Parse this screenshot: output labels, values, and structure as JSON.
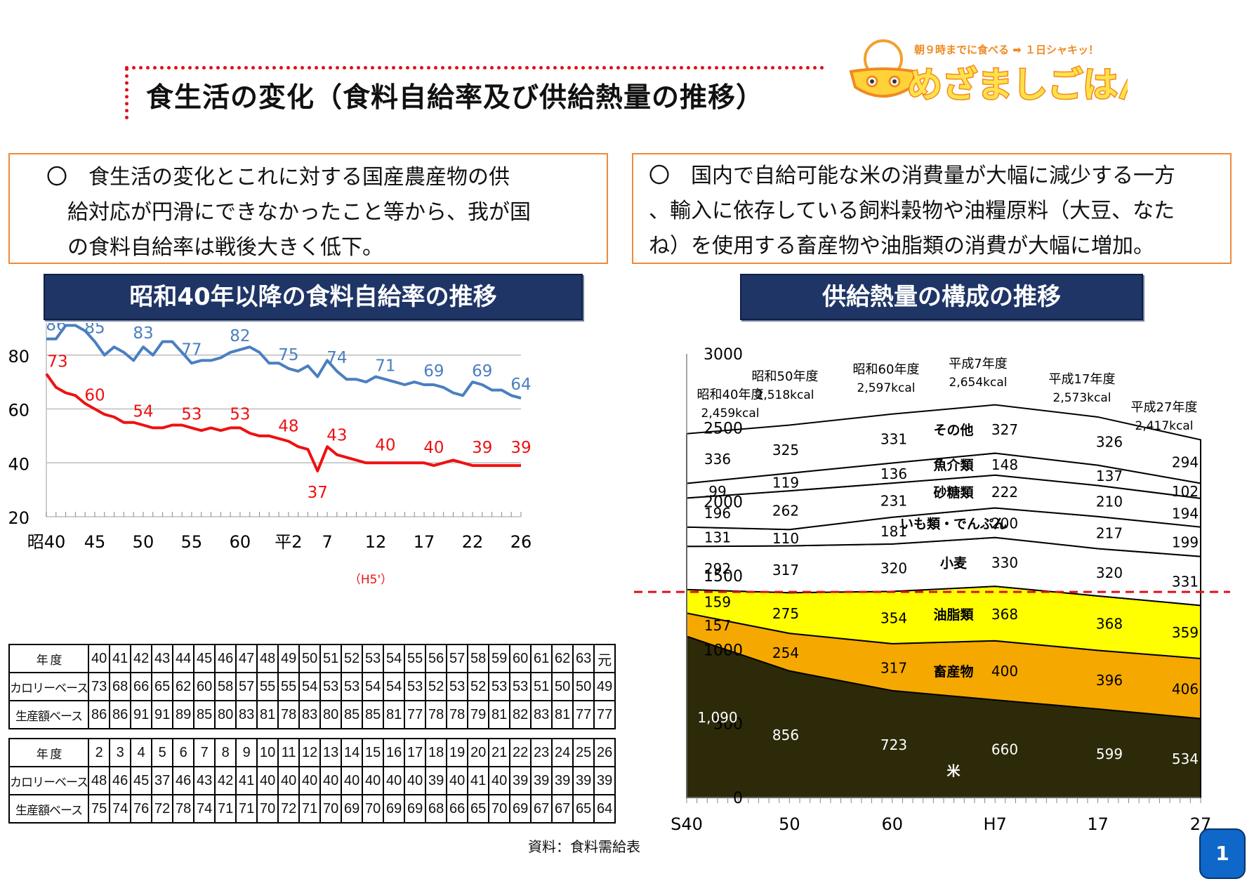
{
  "header": {
    "title": "食生活の変化（食料自給率及び供給熱量の推移）",
    "logo": {
      "tagline": "朝９時までに食べる ➡ １日シャキッ！",
      "name": "めざましごはん"
    }
  },
  "boxes": {
    "left": "〇　食生活の変化とこれに対する国産農産物の供\n　給対応が円滑にできなかったこと等から、我が国\n　の食料自給率は戦後大きく低下。",
    "right": "〇　国内で自給可能な米の消費量が大幅に減少する一方\n、輸入に依存している飼料穀物や油糧原料（大豆、なた\nね）を使用する畜産物や油脂類の消費が大幅に増加。"
  },
  "colors": {
    "calorie": "#ee1111",
    "production": "#4a7fc0",
    "rice": "#2c2a08",
    "livestock": "#f5a800",
    "oil": "#ffff00",
    "banner": "#1f3566"
  },
  "chart_data": [
    {
      "type": "line",
      "title": "昭和40年以降の食料自給率の推移",
      "ylim": [
        20,
        100
      ],
      "y_ticks": [
        "100",
        "80",
        "60",
        "40",
        "20"
      ],
      "x_tick_labels": [
        "昭40",
        "45",
        "50",
        "55",
        "60",
        "平2",
        "7",
        "12",
        "17",
        "22",
        "26"
      ],
      "series": [
        {
          "name": "生産額ベース",
          "values": [
            86,
            86,
            91,
            91,
            89,
            85,
            80,
            83,
            81,
            78,
            83,
            80,
            85,
            85,
            81,
            77,
            78,
            78,
            79,
            81,
            82,
            83,
            81,
            77,
            77,
            75,
            74,
            76,
            72,
            78,
            74,
            71,
            71,
            70,
            72,
            71,
            70,
            69,
            70,
            69,
            69,
            68,
            66,
            65,
            70,
            69,
            67,
            67,
            65,
            64
          ],
          "labels": [
            "86",
            "85",
            "83",
            "77",
            "82",
            "75",
            "74",
            "71",
            "69",
            "69",
            "64"
          ]
        },
        {
          "name": "カロリーベース",
          "values": [
            73,
            68,
            66,
            65,
            62,
            60,
            58,
            57,
            55,
            55,
            54,
            53,
            53,
            54,
            54,
            53,
            52,
            53,
            52,
            53,
            53,
            51,
            50,
            50,
            49,
            48,
            46,
            45,
            37,
            46,
            43,
            42,
            41,
            40,
            40,
            40,
            40,
            40,
            40,
            40,
            39,
            40,
            41,
            40,
            39,
            39,
            39,
            39,
            39,
            39
          ],
          "labels": [
            "73",
            "60",
            "54",
            "53",
            "53",
            "48",
            "43",
            "37",
            "40",
            "40",
            "39",
            "39"
          ]
        }
      ],
      "annotation": "（H5'）"
    },
    {
      "type": "area",
      "title": "供給熱量の構成の推移",
      "ylim": [
        0,
        3000
      ],
      "y_ticks": [
        "3000",
        "2500",
        "2000",
        "1500",
        "1000",
        "500",
        "0"
      ],
      "x_tick_labels": [
        "S40",
        "50",
        "60",
        "H7",
        "17",
        "27"
      ],
      "x_years": [
        1965,
        1975,
        1985,
        1995,
        2005,
        2015
      ],
      "series": [
        {
          "name": "米",
          "values": [
            1090,
            856,
            723,
            660,
            599,
            534
          ],
          "labels": [
            "1,090",
            "856",
            "723",
            "660",
            "599",
            "534"
          ]
        },
        {
          "name": "畜産物",
          "values": [
            157,
            254,
            317,
            400,
            396,
            406
          ],
          "labels": [
            "157",
            "254",
            "317",
            "400",
            "396",
            "406"
          ]
        },
        {
          "name": "油脂類",
          "values": [
            159,
            275,
            354,
            368,
            368,
            359
          ],
          "labels": [
            "159",
            "275",
            "354",
            "368",
            "368",
            "359"
          ]
        },
        {
          "name": "小麦",
          "values": [
            292,
            317,
            320,
            330,
            320,
            331
          ],
          "labels": [
            "292",
            "317",
            "320",
            "330",
            "320",
            "331"
          ]
        },
        {
          "name": "いも類・でんぷん",
          "values": [
            131,
            110,
            181,
            200,
            217,
            199
          ],
          "labels": [
            "131",
            "110",
            "181",
            "200",
            "217",
            "199"
          ]
        },
        {
          "name": "砂糖類",
          "values": [
            196,
            262,
            231,
            222,
            210,
            194
          ],
          "labels": [
            "196",
            "262",
            "231",
            "222",
            "210",
            "194"
          ]
        },
        {
          "name": "魚介類",
          "values": [
            99,
            119,
            136,
            148,
            137,
            102
          ],
          "labels": [
            "99",
            "119",
            "136",
            "148",
            "137",
            "102"
          ]
        },
        {
          "name": "その他",
          "values": [
            336,
            325,
            331,
            327,
            326,
            294
          ],
          "labels": [
            "336",
            "325",
            "331",
            "327",
            "326",
            "294"
          ]
        }
      ],
      "totals": [
        {
          "era": "昭和40年度",
          "kcal": "2,459kcal"
        },
        {
          "era": "昭和50年度",
          "kcal": "2,518kcal"
        },
        {
          "era": "昭和60年度",
          "kcal": "2,597kcal"
        },
        {
          "era": "平成7年度",
          "kcal": "2,654kcal"
        },
        {
          "era": "平成17年度",
          "kcal": "2,573kcal"
        },
        {
          "era": "平成27年度",
          "kcal": "2,417kcal"
        }
      ],
      "dashed_line_value": 1390
    }
  ],
  "tables": [
    {
      "rows": [
        {
          "header": "年 度",
          "cells": [
            "40",
            "41",
            "42",
            "43",
            "44",
            "45",
            "46",
            "47",
            "48",
            "49",
            "50",
            "51",
            "52",
            "53",
            "54",
            "55",
            "56",
            "57",
            "58",
            "59",
            "60",
            "61",
            "62",
            "63",
            "元"
          ]
        },
        {
          "header": "カロリーベース",
          "cells": [
            "73",
            "68",
            "66",
            "65",
            "62",
            "60",
            "58",
            "57",
            "55",
            "55",
            "54",
            "53",
            "53",
            "54",
            "54",
            "53",
            "52",
            "53",
            "52",
            "53",
            "53",
            "51",
            "50",
            "50",
            "49"
          ]
        },
        {
          "header": "生産額ベース",
          "cells": [
            "86",
            "86",
            "91",
            "91",
            "89",
            "85",
            "80",
            "83",
            "81",
            "78",
            "83",
            "80",
            "85",
            "85",
            "81",
            "77",
            "78",
            "78",
            "79",
            "81",
            "82",
            "83",
            "81",
            "77",
            "77"
          ]
        }
      ]
    },
    {
      "rows": [
        {
          "header": "年 度",
          "cells": [
            "2",
            "3",
            "4",
            "5",
            "6",
            "7",
            "8",
            "9",
            "10",
            "11",
            "12",
            "13",
            "14",
            "15",
            "16",
            "17",
            "18",
            "19",
            "20",
            "21",
            "22",
            "23",
            "24",
            "25",
            "26"
          ]
        },
        {
          "header": "カロリーベース",
          "cells": [
            "48",
            "46",
            "45",
            "37",
            "46",
            "43",
            "42",
            "41",
            "40",
            "40",
            "40",
            "40",
            "40",
            "40",
            "40",
            "40",
            "39",
            "40",
            "41",
            "40",
            "39",
            "39",
            "39",
            "39",
            "39"
          ]
        },
        {
          "header": "生産額ベース",
          "cells": [
            "75",
            "74",
            "76",
            "72",
            "78",
            "74",
            "71",
            "71",
            "70",
            "72",
            "71",
            "70",
            "69",
            "70",
            "69",
            "69",
            "68",
            "66",
            "65",
            "70",
            "69",
            "67",
            "67",
            "65",
            "64"
          ]
        }
      ]
    }
  ],
  "source_note": "資料：食料需給表",
  "page_number": "1"
}
